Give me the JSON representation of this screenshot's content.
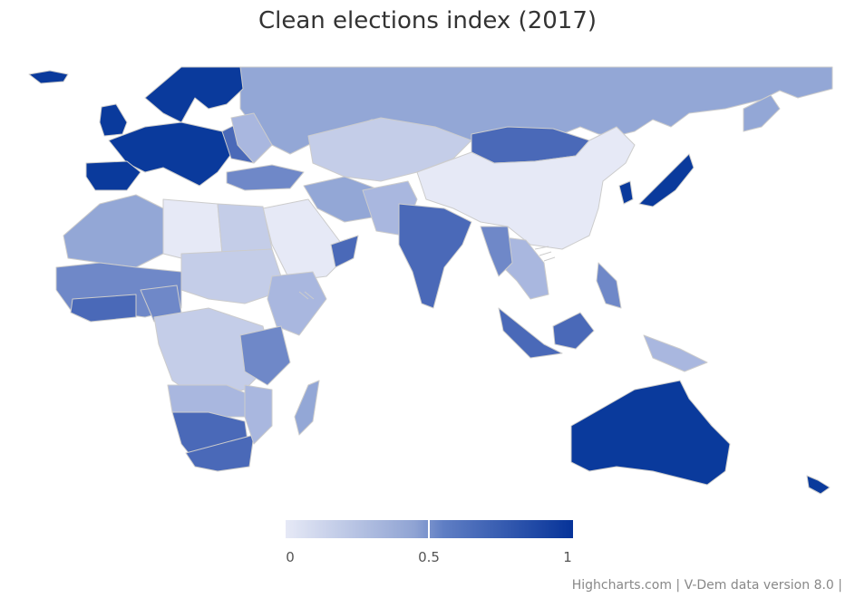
{
  "title": "Clean elections index (2017)",
  "legend": {
    "min_label": "0",
    "mid_label": "0.5",
    "max_label": "1",
    "color_low": "#e6e9f6",
    "color_mid": "#7088c9",
    "color_high": "#063399"
  },
  "credits": "Highcharts.com | V-Dem data version 8.0 |",
  "colors": {
    "very_low": "#e6e9f6",
    "low": "#c4cde8",
    "low_mid": "#a9b7df",
    "mid": "#93a7d6",
    "mid_high": "#6f88c8",
    "high": "#4a69b8",
    "very_high": "#0a3a9c",
    "no_data_stroke": "#555555"
  }
}
